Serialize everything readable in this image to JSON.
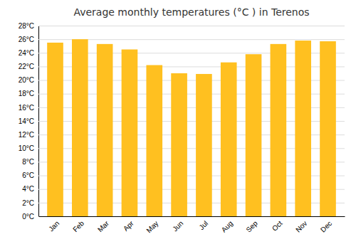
{
  "chart_data": {
    "type": "bar",
    "title": "Average monthly temperatures (°C ) in Terenos",
    "categories": [
      "Jan",
      "Feb",
      "Mar",
      "Apr",
      "May",
      "Jun",
      "Jul",
      "Aug",
      "Sep",
      "Oct",
      "Nov",
      "Dec"
    ],
    "values": [
      25.5,
      26.0,
      25.3,
      24.5,
      22.2,
      21.0,
      20.9,
      22.6,
      23.8,
      25.3,
      25.8,
      25.7
    ],
    "color": "#FFC020",
    "ylim": [
      0,
      28
    ],
    "yticks": [
      {
        "value": 0,
        "label": "0°C"
      },
      {
        "value": 2,
        "label": "2°C"
      },
      {
        "value": 4,
        "label": "4°C"
      },
      {
        "value": 6,
        "label": "6°C"
      },
      {
        "value": 8,
        "label": "8°C"
      },
      {
        "value": 10,
        "label": "10°C"
      },
      {
        "value": 12,
        "label": "12°C"
      },
      {
        "value": 14,
        "label": "14°C"
      },
      {
        "value": 16,
        "label": "16°C"
      },
      {
        "value": 18,
        "label": "18°C"
      },
      {
        "value": 20,
        "label": "20°C"
      },
      {
        "value": 22,
        "label": "22°C"
      },
      {
        "value": 24,
        "label": "24°C"
      },
      {
        "value": 26,
        "label": "26°C"
      },
      {
        "value": 28,
        "label": "28°C"
      }
    ],
    "grid": true
  }
}
